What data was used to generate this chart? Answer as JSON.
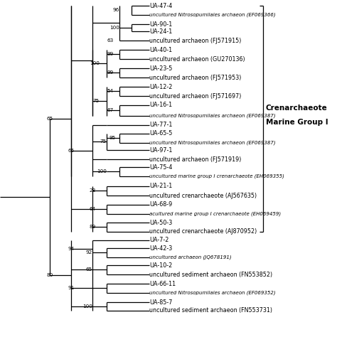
{
  "background_color": "#ffffff",
  "line_color": "#000000",
  "line_width": 0.9,
  "label_fontsize": 5.8,
  "small_fontsize": 5.0,
  "bootstrap_fontsize": 5.2,
  "annotation_fontsize": 7.5,
  "xlim": [
    0,
    1
  ],
  "ylim": [
    1,
    37
  ],
  "figsize": [
    4.74,
    4.74
  ],
  "dpi": 100
}
